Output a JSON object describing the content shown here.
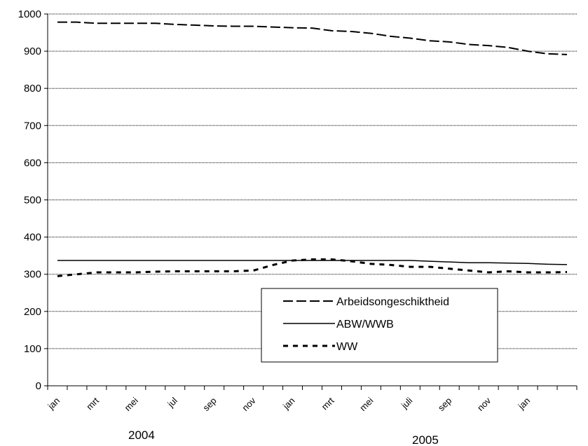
{
  "chart_data": {
    "type": "line",
    "title": "",
    "xlabel": "",
    "ylabel": "",
    "ylim": [
      0,
      1000
    ],
    "yticks": [
      0,
      100,
      200,
      300,
      400,
      500,
      600,
      700,
      800,
      900,
      1000
    ],
    "grid": "horizontal",
    "legend_position": "bottom-center",
    "x_tick_labels": [
      "jan",
      "mrt",
      "mei",
      "jul",
      "sep",
      "nov",
      "jan",
      "mrt",
      "mei",
      "juli",
      "sep",
      "nov",
      "jan"
    ],
    "year_labels": [
      "2004",
      "2005"
    ],
    "x": [
      "2004-01",
      "2004-02",
      "2004-03",
      "2004-04",
      "2004-05",
      "2004-06",
      "2004-07",
      "2004-08",
      "2004-09",
      "2004-10",
      "2004-11",
      "2004-12",
      "2005-01",
      "2005-02",
      "2005-03",
      "2005-04",
      "2005-05",
      "2005-06",
      "2005-07",
      "2005-08",
      "2005-09",
      "2005-10",
      "2005-11",
      "2005-12",
      "2006-01",
      "2006-02",
      "2006-03"
    ],
    "series": [
      {
        "name": "Arbeidsongeschiktheid",
        "style": "long-dash",
        "values": [
          978,
          978,
          975,
          975,
          975,
          975,
          972,
          970,
          968,
          967,
          967,
          965,
          963,
          962,
          955,
          953,
          948,
          940,
          935,
          928,
          925,
          918,
          915,
          910,
          900,
          893,
          891
        ]
      },
      {
        "name": "ABW/WWB",
        "style": "solid",
        "values": [
          337,
          337,
          337,
          337,
          337,
          337,
          337,
          337,
          337,
          337,
          337,
          337,
          337,
          337,
          337,
          337,
          337,
          337,
          337,
          335,
          333,
          331,
          331,
          330,
          329,
          327,
          326
        ]
      },
      {
        "name": "WW",
        "style": "short-dash",
        "values": [
          295,
          300,
          305,
          305,
          305,
          307,
          308,
          308,
          308,
          308,
          310,
          325,
          337,
          340,
          340,
          335,
          328,
          325,
          320,
          320,
          315,
          310,
          305,
          308,
          305,
          305,
          306
        ]
      }
    ]
  }
}
